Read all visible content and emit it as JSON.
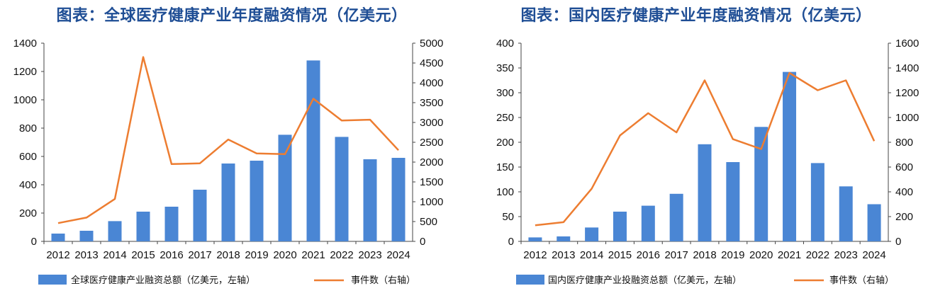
{
  "chart_data": [
    {
      "type": "bar",
      "title": "图表：全球医疗健康产业年度融资情况（亿美元）",
      "categories": [
        "2012",
        "2013",
        "2014",
        "2015",
        "2016",
        "2017",
        "2018",
        "2019",
        "2020",
        "2021",
        "2022",
        "2023",
        "2024"
      ],
      "series": [
        {
          "name": "全球医疗健康产业融资总额（亿美元，左轴）",
          "type": "bar",
          "axis": "left",
          "color": "#4a86d4",
          "values": [
            55,
            75,
            143,
            210,
            245,
            365,
            550,
            570,
            753,
            1278,
            738,
            580,
            590
          ]
        },
        {
          "name": "事件数（右轴）",
          "type": "line",
          "axis": "right",
          "color": "#ed7d31",
          "values": [
            460,
            600,
            1070,
            4650,
            1950,
            1970,
            2570,
            2220,
            2200,
            3600,
            3050,
            3070,
            2300
          ]
        }
      ],
      "ylim_left": [
        0,
        1400
      ],
      "yticks_left": [
        "0",
        "200",
        "400",
        "600",
        "800",
        "1000",
        "1200",
        "1400"
      ],
      "ylim_right": [
        0,
        5000
      ],
      "yticks_right": [
        "0",
        "500",
        "1000",
        "1500",
        "2000",
        "2500",
        "3000",
        "3500",
        "4000",
        "4500",
        "5000"
      ],
      "grid": false,
      "legend": "bottom"
    },
    {
      "type": "bar",
      "title": "图表：国内医疗健康产业年度融资情况（亿美元）",
      "categories": [
        "2012",
        "2013",
        "2014",
        "2015",
        "2016",
        "2017",
        "2018",
        "2019",
        "2020",
        "2021",
        "2022",
        "2023",
        "2024"
      ],
      "series": [
        {
          "name": "国内医疗健康产业投融资总额（亿美元，左轴）",
          "type": "bar",
          "axis": "left",
          "color": "#4a86d4",
          "values": [
            8,
            10,
            28,
            60,
            72,
            96,
            196,
            160,
            231,
            342,
            158,
            111,
            75
          ]
        },
        {
          "name": "事件数（右轴）",
          "type": "line",
          "axis": "right",
          "color": "#ed7d31",
          "values": [
            130,
            155,
            425,
            855,
            1035,
            880,
            1300,
            825,
            745,
            1360,
            1220,
            1300,
            810
          ]
        }
      ],
      "ylim_left": [
        0,
        400
      ],
      "yticks_left": [
        "0",
        "50",
        "100",
        "150",
        "200",
        "250",
        "300",
        "350",
        "400"
      ],
      "ylim_right": [
        0,
        1600
      ],
      "yticks_right": [
        "0",
        "200",
        "400",
        "600",
        "800",
        "1000",
        "1200",
        "1400",
        "1600"
      ],
      "grid": false,
      "legend": "bottom"
    }
  ]
}
